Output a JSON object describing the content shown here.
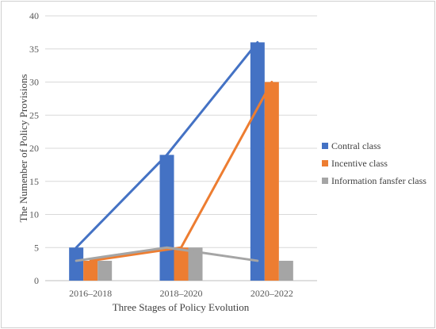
{
  "chart_data": {
    "type": "bar",
    "title": "",
    "xlabel": "Three Stages of Policy Evolution",
    "ylabel": "The Numenber of Policy Provisions",
    "categories": [
      "2016–2018",
      "2018–2020",
      "2020–2022"
    ],
    "series": [
      {
        "name": "Contral class",
        "values": [
          5,
          19,
          36
        ],
        "color": "#4472c4"
      },
      {
        "name": "Incentive class",
        "values": [
          3,
          5,
          30
        ],
        "color": "#ed7d31"
      },
      {
        "name": "Information fansfer class",
        "values": [
          3,
          5,
          3
        ],
        "color": "#a5a5a5"
      }
    ],
    "trend_lines": [
      {
        "series": "Contral class",
        "values": [
          5,
          19,
          36
        ]
      },
      {
        "series": "Incentive class",
        "values": [
          3,
          5,
          30
        ]
      },
      {
        "series": "Information fansfer class",
        "values": [
          3,
          5,
          3
        ]
      }
    ],
    "ylim": [
      0,
      40
    ],
    "yticks": [
      0,
      5,
      10,
      15,
      20,
      25,
      30,
      35,
      40
    ],
    "grid": true,
    "legend_position": "right"
  }
}
